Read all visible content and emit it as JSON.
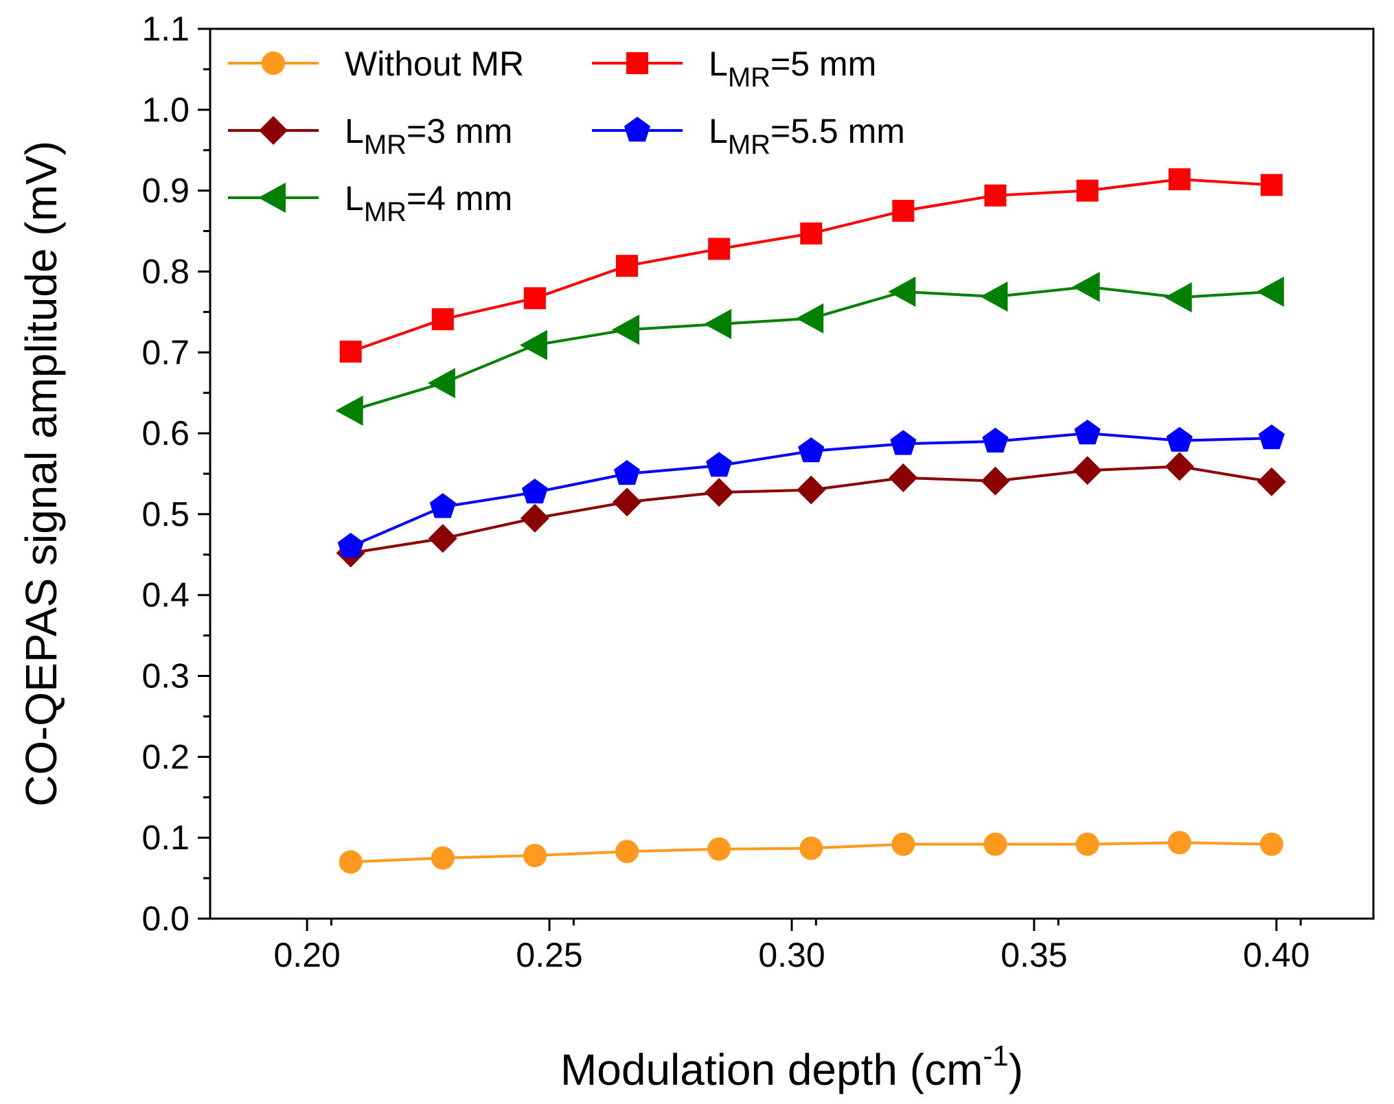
{
  "chart_data": {
    "type": "line",
    "xlabel": {
      "main": "Modulation depth (cm",
      "sup": "-1",
      "close": ")"
    },
    "ylabel": "CO-QEPAS signal amplitude (mV)",
    "xlim": [
      0.18,
      0.42
    ],
    "ylim": [
      0.0,
      1.1
    ],
    "xticks": [
      0.2,
      0.25,
      0.3,
      0.35,
      0.4
    ],
    "xtick_labels": [
      "0.20",
      "0.25",
      "0.30",
      "0.35",
      "0.40"
    ],
    "yticks": [
      0.0,
      0.1,
      0.2,
      0.3,
      0.4,
      0.5,
      0.6,
      0.7,
      0.8,
      0.9,
      1.0,
      1.1
    ],
    "ytick_labels": [
      "0.0",
      "0.1",
      "0.2",
      "0.3",
      "0.4",
      "0.5",
      "0.6",
      "0.7",
      "0.8",
      "0.9",
      "1.0",
      "1.1"
    ],
    "x": [
      0.209,
      0.228,
      0.247,
      0.266,
      0.285,
      0.304,
      0.323,
      0.342,
      0.361,
      0.38,
      0.399
    ],
    "series": [
      {
        "name": "Without MR",
        "legend": {
          "main": "Without MR",
          "sub": "",
          "rest": ""
        },
        "color": "#FF9A1F",
        "marker": "circle",
        "values": [
          0.07,
          0.075,
          0.078,
          0.083,
          0.086,
          0.087,
          0.092,
          0.092,
          0.092,
          0.094,
          0.092
        ]
      },
      {
        "name": "LMR=5 mm",
        "legend": {
          "main": "L",
          "sub": "MR",
          "rest": "=5 mm"
        },
        "color": "#FF0000",
        "marker": "square",
        "values": [
          0.701,
          0.741,
          0.767,
          0.807,
          0.828,
          0.847,
          0.875,
          0.894,
          0.9,
          0.914,
          0.907
        ]
      },
      {
        "name": "LMR=3 mm",
        "legend": {
          "main": "L",
          "sub": "MR",
          "rest": "=3 mm"
        },
        "color": "#8B0000",
        "marker": "diamond",
        "values": [
          0.452,
          0.47,
          0.495,
          0.515,
          0.527,
          0.53,
          0.545,
          0.541,
          0.554,
          0.559,
          0.54
        ]
      },
      {
        "name": "LMR=5.5 mm",
        "legend": {
          "main": "L",
          "sub": "MR",
          "rest": "=5.5 mm"
        },
        "color": "#0000FF",
        "marker": "pentagon",
        "values": [
          0.46,
          0.509,
          0.527,
          0.55,
          0.56,
          0.578,
          0.587,
          0.59,
          0.6,
          0.591,
          0.594
        ]
      },
      {
        "name": "LMR=4 mm",
        "legend": {
          "main": "L",
          "sub": "MR",
          "rest": "=4 mm"
        },
        "color": "#008000",
        "marker": "triangle-left",
        "values": [
          0.628,
          0.662,
          0.709,
          0.728,
          0.735,
          0.742,
          0.775,
          0.769,
          0.781,
          0.768,
          0.775
        ]
      }
    ]
  }
}
